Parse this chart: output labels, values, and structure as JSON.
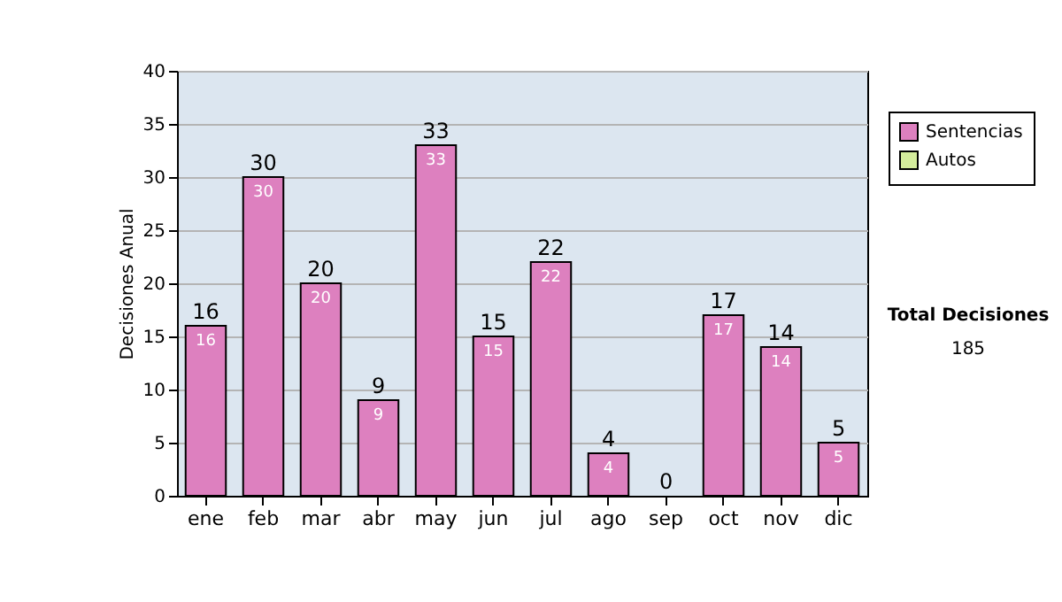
{
  "chart_data": {
    "type": "bar",
    "ylabel": "Decisiones Anual",
    "categories": [
      "ene",
      "feb",
      "mar",
      "abr",
      "may",
      "jun",
      "jul",
      "ago",
      "sep",
      "oct",
      "nov",
      "dic"
    ],
    "series": [
      {
        "name": "Sentencias",
        "color": "#dd80bf",
        "values": [
          16,
          30,
          20,
          9,
          33,
          15,
          22,
          4,
          0,
          17,
          14,
          5
        ],
        "value_labels": [
          "16",
          "30",
          "20",
          "9",
          "33",
          "15",
          "22",
          "4",
          null,
          "17",
          "14",
          "5"
        ]
      },
      {
        "name": "Autos",
        "color": "#d4ec9c",
        "values": [
          0,
          0,
          0,
          0,
          0,
          0,
          0,
          0,
          0,
          0,
          0,
          0
        ]
      }
    ],
    "stacked": true,
    "totals": [
      "16",
      "30",
      "20",
      "9",
      "33",
      "15",
      "22",
      "4",
      "0",
      "17",
      "14",
      "5"
    ],
    "ylim": [
      0,
      40
    ],
    "yticks": [
      0,
      5,
      10,
      15,
      20,
      25,
      30,
      35,
      40
    ],
    "grid": "y",
    "legend": "right",
    "annotations": [
      "Total Decisiones",
      "185"
    ]
  }
}
